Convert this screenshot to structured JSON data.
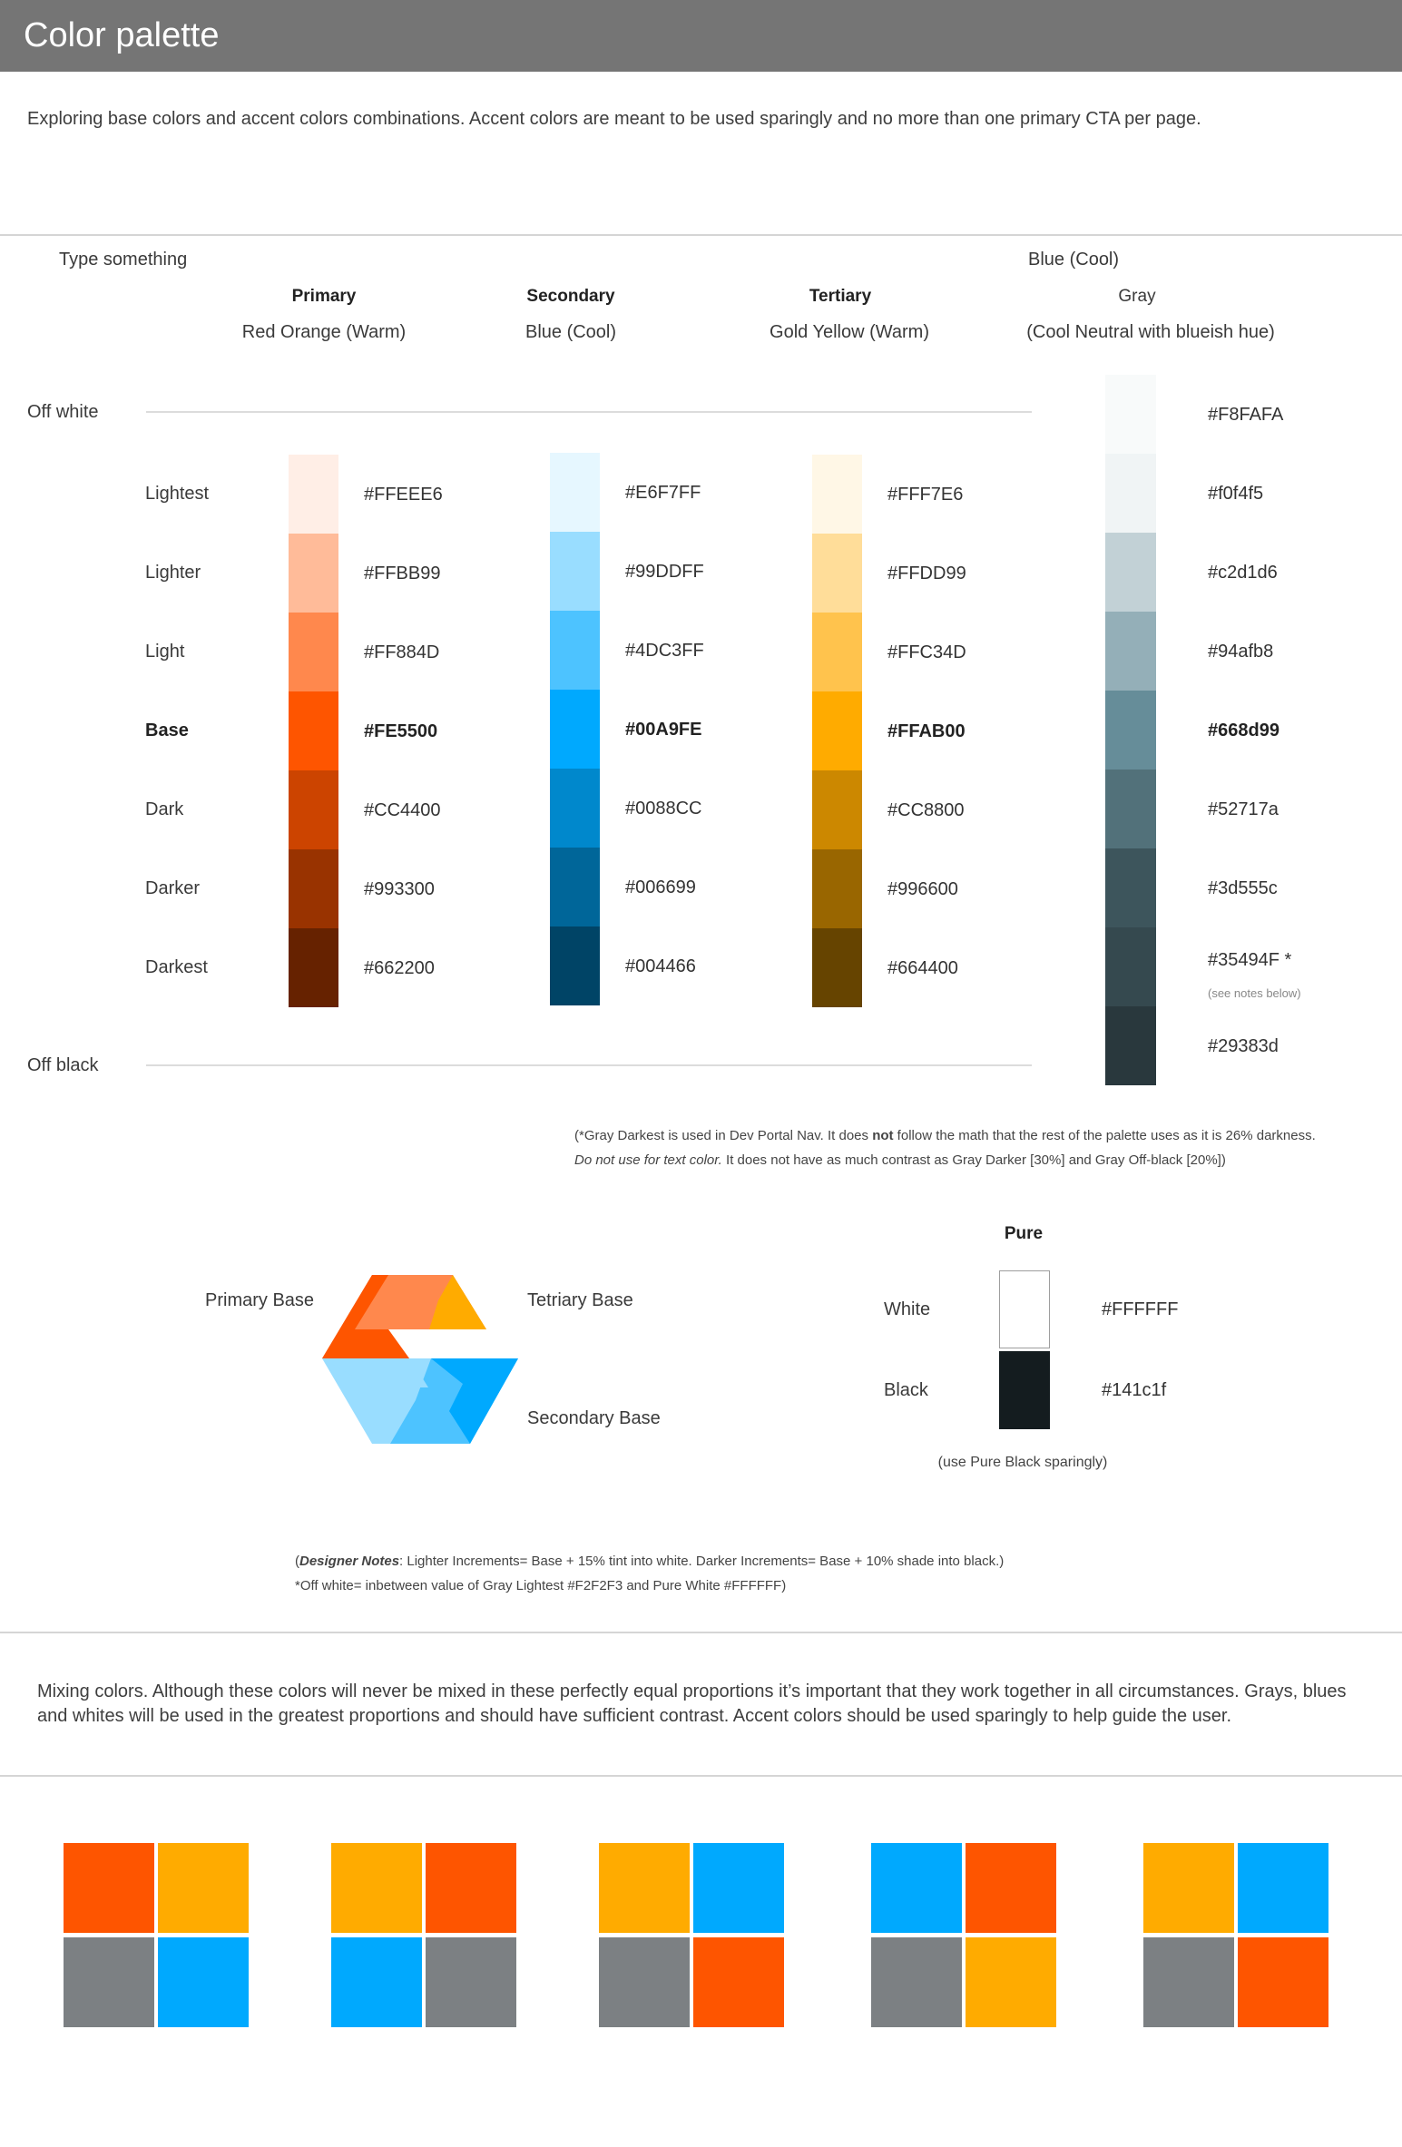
{
  "page": {
    "title": "Color palette",
    "intro": "Exploring base colors and accent colors combinations. Accent colors are meant to be used sparingly and no more than one primary CTA per page."
  },
  "palette": {
    "type_something": "Type something",
    "top_right_label": "Blue (Cool)",
    "off_white_label": "Off white",
    "off_black_label": "Off black",
    "shade_labels": [
      "Lightest",
      "Lighter",
      "Light",
      "Base",
      "Dark",
      "Darker",
      "Darkest"
    ],
    "columns": [
      {
        "name": "Primary",
        "subtitle": "Red Orange (Warm)",
        "colors": [
          "#FFEEE6",
          "#FFBB99",
          "#FF884D",
          "#FE5500",
          "#CC4400",
          "#993300",
          "#662200"
        ]
      },
      {
        "name": "Secondary",
        "subtitle": "Blue (Cool)",
        "colors": [
          "#E6F7FF",
          "#99DDFF",
          "#4DC3FF",
          "#00A9FE",
          "#0088CC",
          "#006699",
          "#004466"
        ]
      },
      {
        "name": "Tertiary",
        "subtitle": "Gold Yellow (Warm)",
        "colors": [
          "#FFF7E6",
          "#FFDD99",
          "#FFC34D",
          "#FFAB00",
          "#CC8800",
          "#996600",
          "#664400"
        ]
      }
    ],
    "gray": {
      "name": "Gray",
      "subtitle": "(Cool Neutral with blueish hue)",
      "colors": [
        "#F8FAFA",
        "#f0f4f5",
        "#c2d1d6",
        "#94afb8",
        "#668d99",
        "#52717a",
        "#3d555c",
        "#35494F",
        "#29383d"
      ],
      "labels": [
        "#F8FAFA",
        "#f0f4f5",
        "#c2d1d6",
        "#94afb8",
        "#668d99",
        "#52717a",
        "#3d555c",
        "#35494F *",
        "#29383d"
      ],
      "see_notes": "(see notes below)"
    },
    "footnote": {
      "line1_a": "(*Gray Darkest is used in Dev Portal Nav. It does ",
      "line1_b": "not",
      "line1_c": " follow the math that the rest of the palette uses as it is 26% darkness.",
      "line2_a": "Do not use for text color.",
      "line2_b": "  It does not have as much contrast as Gray Darker [30%] and Gray Off-black [20%])"
    }
  },
  "logo": {
    "primary_label": "Primary Base",
    "tertiary_label": "Tetriary Base",
    "secondary_label": "Secondary Base"
  },
  "pure": {
    "title": "Pure",
    "white_label": "White",
    "white_hex": "#FFFFFF",
    "black_label": "Black",
    "black_hex": "#141c1f",
    "note": "(use Pure Black sparingly)"
  },
  "designer_notes": {
    "open": "(",
    "label": "Designer Notes",
    "line1": ":  Lighter Increments= Base + 15% tint into white. Darker Increments= Base + 10% shade into black.)",
    "line2": "*Off white= inbetween value of Gray Lightest #F2F2F3 and Pure White #FFFFFF)"
  },
  "mixing": {
    "text": "Mixing colors. Although these colors will never be mixed in these perfectly equal proportions it’s important that they work together in all circumstances. Grays, blues and whites will be used in the greatest proportions and should have sufficient contrast. Accent colors should be used sparingly to help guide the user.",
    "groups": [
      [
        "#FE5500",
        "#FFAB00",
        "#7C8083",
        "#00A9FE"
      ],
      [
        "#FFAB00",
        "#FE5500",
        "#00A9FE",
        "#7C8083"
      ],
      [
        "#FFAB00",
        "#00A9FE",
        "#7C8083",
        "#FE5500"
      ],
      [
        "#00A9FE",
        "#FE5500",
        "#7C8083",
        "#FFAB00"
      ],
      [
        "#FFAB00",
        "#00A9FE",
        "#7C8083",
        "#FE5500"
      ]
    ]
  }
}
